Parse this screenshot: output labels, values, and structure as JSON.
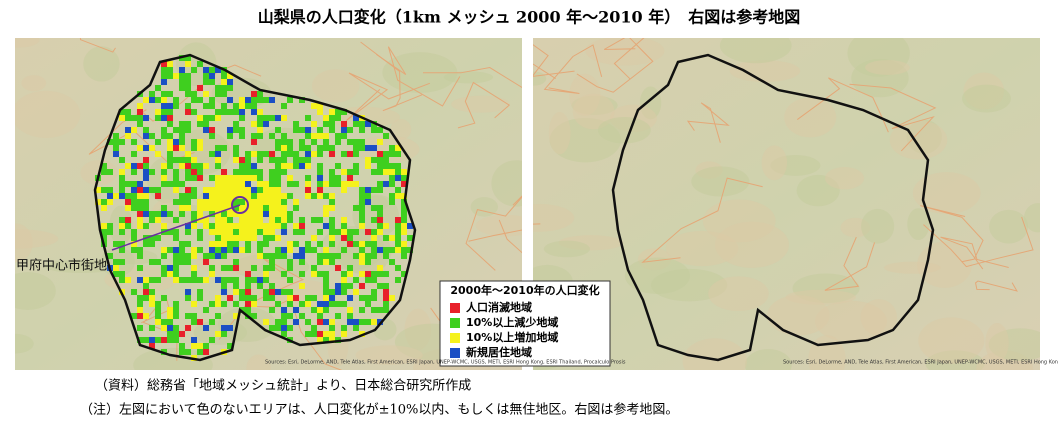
{
  "title": "山梨県の人口変化（1km メッシュ 2000 年～2010 年）　右図は参考地図",
  "annotation": "甲府中心市街地",
  "legend": {
    "title": "2000年～2010年の人口変化",
    "items": [
      {
        "label": "人口消滅地域",
        "color": "#e8202a"
      },
      {
        "label": "10%以上減少地域",
        "color": "#3fcf1f"
      },
      {
        "label": "10%以上増加地域",
        "color": "#f5f21c"
      },
      {
        "label": "新規居住地域",
        "color": "#1b4fc4"
      }
    ]
  },
  "attribution": "Sources: Esri, DeLorme, AND, Tele Atlas, First American, ESRI Japan, UNEP-WCMC, USGS, METI, ESRI Hong Kong, ESRI Thailand, Procalculo Prosis",
  "notes": [
    "（資料）総務省「地域メッシュ統計」より、日本総合研究所作成",
    "（注）左図において色のないエリアは、人口変化が±10%以内、もしくは無住地区。右図は参考地図。"
  ]
}
